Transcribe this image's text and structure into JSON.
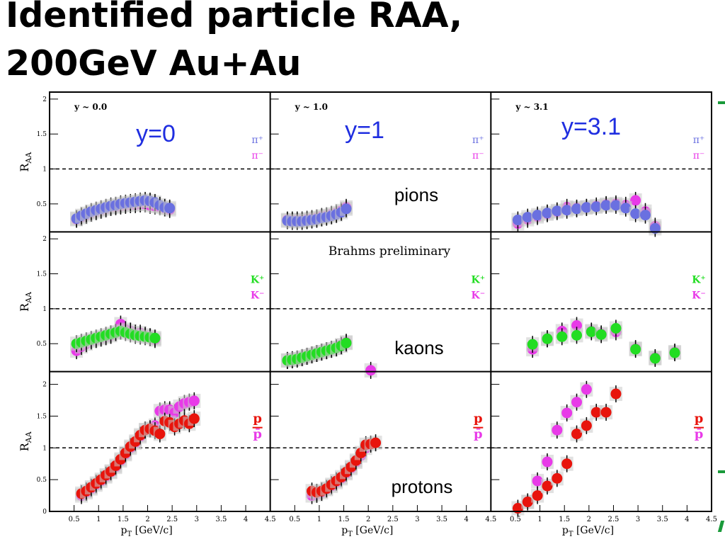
{
  "title_lines": [
    "Identified particle RAA,",
    "200GeV Au+Au"
  ],
  "chart_data": {
    "type": "scatter",
    "layout": "grid",
    "x_label": "p",
    "x_label_sub": "T",
    "x_label_unit": "[GeV/c]",
    "y_label": "R",
    "y_label_sub": "AA",
    "xlim": [
      0,
      4.5
    ],
    "x_ticks": [
      0.5,
      1,
      1.5,
      2,
      2.5,
      3,
      3.5,
      4,
      4.5
    ],
    "x_tick_labels": [
      "0.5",
      "1",
      "1.5",
      "2",
      "2.5",
      "3",
      "3.5",
      "4",
      "4.5"
    ],
    "row_y_ranges": [
      [
        0.1,
        2.1
      ],
      [
        0.1,
        2.1
      ],
      [
        0,
        2.2
      ]
    ],
    "row_y_ticks": [
      [
        0.5,
        1,
        1.5,
        2
      ],
      [
        0.5,
        1,
        1.5,
        2
      ],
      [
        0,
        0.5,
        1,
        1.5,
        2
      ]
    ],
    "row_y_tick_labels": [
      [
        "0.5",
        "1",
        "1.5",
        "2"
      ],
      [
        "0.5",
        "1",
        "1.5",
        "2"
      ],
      [
        "0",
        "0.5",
        "1",
        "1.5",
        "2"
      ]
    ],
    "reference_line": 1,
    "column_labels": [
      "y ~ 0.0",
      "y ~ 1.0",
      "y ~ 3.1"
    ],
    "column_big_labels": [
      "y=0",
      "y=1",
      "y=3.1"
    ],
    "row_labels": [
      "pions",
      "kaons",
      "protons"
    ],
    "annotation": "Brahms preliminary",
    "colors": {
      "pi_plus": "#6a70e0",
      "pi_minus": "#e83ae8",
      "k_plus": "#22dd22",
      "k_minus": "#e83ae8",
      "p": "#e8140c",
      "pbar": "#e83ae8",
      "syst": "#c8c8c8",
      "big_label": "#1f2ee0"
    },
    "legends": [
      [
        {
          "text": "π⁺",
          "color": "#6a70e0"
        },
        {
          "text": "π⁻",
          "color": "#e83ae8"
        }
      ],
      [
        {
          "text": "K⁺",
          "color": "#22dd22"
        },
        {
          "text": "K⁻",
          "color": "#e83ae8"
        }
      ],
      [
        {
          "text": "p",
          "color": "#e8140c"
        },
        {
          "text": "p̄",
          "color": "#e83ae8"
        }
      ]
    ],
    "panels": [
      {
        "row": 0,
        "col": 0,
        "series": [
          {
            "name": "π⁻",
            "color": "#e83ae8",
            "x": [
              0.55,
              0.65,
              0.75,
              0.85,
              0.95,
              1.05,
              1.15,
              1.25,
              1.35,
              1.45,
              1.55,
              1.65,
              1.75,
              1.85,
              1.95,
              2.05,
              2.15,
              2.25,
              2.35,
              2.45
            ],
            "y": [
              0.28,
              0.31,
              0.34,
              0.37,
              0.39,
              0.41,
              0.43,
              0.45,
              0.46,
              0.47,
              0.48,
              0.49,
              0.49,
              0.5,
              0.5,
              0.48,
              0.47,
              0.46,
              0.44,
              0.42
            ]
          },
          {
            "name": "π⁺",
            "color": "#6a70e0",
            "x": [
              0.55,
              0.65,
              0.75,
              0.85,
              0.95,
              1.05,
              1.15,
              1.25,
              1.35,
              1.45,
              1.55,
              1.65,
              1.75,
              1.85,
              1.95,
              2.05,
              2.15,
              2.25,
              2.35,
              2.45
            ],
            "y": [
              0.29,
              0.33,
              0.36,
              0.39,
              0.41,
              0.43,
              0.45,
              0.47,
              0.48,
              0.5,
              0.51,
              0.52,
              0.53,
              0.54,
              0.55,
              0.54,
              0.52,
              0.48,
              0.45,
              0.44
            ]
          }
        ]
      },
      {
        "row": 0,
        "col": 1,
        "series": [
          {
            "name": "π⁻",
            "color": "#e83ae8",
            "x": [
              0.35,
              0.45,
              0.55,
              0.65,
              0.75,
              0.85,
              0.95,
              1.05,
              1.15,
              1.25,
              1.35,
              1.45,
              1.55
            ],
            "y": [
              0.27,
              0.27,
              0.27,
              0.27,
              0.28,
              0.29,
              0.3,
              0.32,
              0.33,
              0.35,
              0.37,
              0.4,
              0.45
            ]
          },
          {
            "name": "π⁺",
            "color": "#6a70e0",
            "x": [
              0.35,
              0.45,
              0.55,
              0.65,
              0.75,
              0.85,
              0.95,
              1.05,
              1.15,
              1.25,
              1.35,
              1.45,
              1.55
            ],
            "y": [
              0.26,
              0.25,
              0.25,
              0.25,
              0.26,
              0.27,
              0.28,
              0.3,
              0.31,
              0.33,
              0.35,
              0.38,
              0.43
            ]
          }
        ]
      },
      {
        "row": 0,
        "col": 2,
        "series": [
          {
            "name": "π⁻",
            "color": "#e83ae8",
            "x": [
              0.55,
              0.75,
              0.95,
              1.15,
              1.35,
              1.55,
              1.75,
              1.95,
              2.15,
              2.35,
              2.55,
              2.75,
              2.95,
              3.15,
              3.35
            ],
            "y": [
              0.22,
              0.28,
              0.32,
              0.36,
              0.39,
              0.45,
              0.44,
              0.45,
              0.47,
              0.49,
              0.5,
              0.48,
              0.55,
              0.39,
              0.18
            ]
          },
          {
            "name": "π⁺",
            "color": "#6a70e0",
            "x": [
              0.55,
              0.75,
              0.95,
              1.15,
              1.35,
              1.55,
              1.75,
              1.95,
              2.15,
              2.35,
              2.55,
              2.75,
              2.95,
              3.15,
              3.35
            ],
            "y": [
              0.27,
              0.31,
              0.34,
              0.37,
              0.4,
              0.41,
              0.43,
              0.45,
              0.46,
              0.48,
              0.48,
              0.44,
              0.36,
              0.34,
              0.15
            ]
          }
        ]
      },
      {
        "row": 1,
        "col": 0,
        "series": [
          {
            "name": "K⁻",
            "color": "#e83ae8",
            "x": [
              0.55,
              0.65,
              0.75,
              0.85,
              0.95,
              1.05,
              1.15,
              1.25,
              1.35,
              1.45,
              1.55,
              1.65,
              1.75,
              1.85,
              1.95,
              2.05,
              2.15
            ],
            "y": [
              0.4,
              0.46,
              0.5,
              0.54,
              0.56,
              0.58,
              0.6,
              0.62,
              0.66,
              0.78,
              0.7,
              0.68,
              0.65,
              0.65,
              0.62,
              0.6,
              0.56
            ]
          },
          {
            "name": "K⁺",
            "color": "#22dd22",
            "x": [
              0.55,
              0.65,
              0.75,
              0.85,
              0.95,
              1.05,
              1.15,
              1.25,
              1.35,
              1.45,
              1.55,
              1.65,
              1.75,
              1.85,
              1.95,
              2.05,
              2.15
            ],
            "y": [
              0.5,
              0.52,
              0.54,
              0.56,
              0.58,
              0.6,
              0.62,
              0.64,
              0.66,
              0.68,
              0.66,
              0.64,
              0.62,
              0.61,
              0.6,
              0.59,
              0.58
            ]
          }
        ]
      },
      {
        "row": 1,
        "col": 1,
        "series": [
          {
            "name": "K⁻",
            "color": "#e83ae8",
            "x": [
              0.35,
              0.45,
              0.55,
              0.65,
              0.75,
              0.85,
              0.95,
              1.05,
              1.15,
              1.25,
              1.35,
              1.45,
              1.55
            ],
            "y": [
              0.26,
              0.27,
              0.28,
              0.3,
              0.32,
              0.34,
              0.36,
              0.38,
              0.4,
              0.42,
              0.44,
              0.48,
              0.52
            ]
          },
          {
            "name": "K⁺",
            "color": "#22dd22",
            "x": [
              0.35,
              0.45,
              0.55,
              0.65,
              0.75,
              0.85,
              0.95,
              1.05,
              1.15,
              1.25,
              1.35,
              1.45,
              1.55
            ],
            "y": [
              0.26,
              0.27,
              0.28,
              0.3,
              0.32,
              0.34,
              0.36,
              0.38,
              0.4,
              0.42,
              0.44,
              0.47,
              0.51
            ]
          }
        ]
      },
      {
        "row": 1,
        "col": 2,
        "series": [
          {
            "name": "K⁻",
            "color": "#e83ae8",
            "x": [
              0.85,
              1.15,
              1.45,
              1.75,
              2.05,
              2.25,
              2.55,
              2.95,
              3.35,
              3.75
            ],
            "y": [
              0.42,
              0.57,
              0.68,
              0.76,
              0.68,
              0.64,
              0.67,
              0.43,
              0.3,
              0.38
            ]
          },
          {
            "name": "K⁺",
            "color": "#22dd22",
            "x": [
              0.85,
              1.15,
              1.45,
              1.75,
              2.05,
              2.25,
              2.55,
              2.95,
              3.35,
              3.75
            ],
            "y": [
              0.49,
              0.57,
              0.6,
              0.62,
              0.67,
              0.63,
              0.72,
              0.42,
              0.29,
              0.37
            ]
          }
        ]
      },
      {
        "row": 2,
        "col": 0,
        "series": [
          {
            "name": "p̄",
            "color": "#e83ae8",
            "x": [
              0.65,
              0.75,
              0.85,
              0.95,
              1.05,
              1.15,
              1.25,
              1.35,
              1.45,
              1.55,
              1.65,
              1.75,
              1.85,
              1.95,
              2.05,
              2.15,
              2.25,
              2.35,
              2.45,
              2.55,
              2.65,
              2.75,
              2.85,
              2.95
            ],
            "y": [
              0.25,
              0.3,
              0.36,
              0.42,
              0.48,
              0.55,
              0.62,
              0.7,
              0.8,
              0.9,
              1.0,
              1.08,
              1.18,
              1.28,
              1.3,
              1.35,
              1.58,
              1.6,
              1.6,
              1.55,
              1.65,
              1.7,
              1.72,
              1.74
            ]
          },
          {
            "name": "p",
            "color": "#e8140c",
            "x": [
              0.65,
              0.75,
              0.85,
              0.95,
              1.05,
              1.15,
              1.25,
              1.35,
              1.45,
              1.55,
              1.65,
              1.75,
              1.85,
              1.95,
              2.05,
              2.15,
              2.25,
              2.35,
              2.45,
              2.55,
              2.65,
              2.75,
              2.85,
              2.95
            ],
            "y": [
              0.28,
              0.32,
              0.38,
              0.44,
              0.5,
              0.57,
              0.63,
              0.72,
              0.82,
              0.92,
              1.02,
              1.1,
              1.2,
              1.28,
              1.3,
              1.27,
              1.22,
              1.42,
              1.4,
              1.33,
              1.38,
              1.43,
              1.38,
              1.46
            ]
          }
        ]
      },
      {
        "row": 2,
        "col": 1,
        "series": [
          {
            "name": "p̄",
            "color": "#e83ae8",
            "x": [
              0.85,
              0.95,
              1.05,
              1.15,
              1.25,
              1.35,
              1.45,
              1.55,
              1.65,
              1.75,
              1.85,
              1.95,
              2.05
            ],
            "y": [
              0.25,
              0.27,
              0.3,
              0.35,
              0.4,
              0.46,
              0.52,
              0.6,
              0.68,
              0.78,
              0.88,
              1.0,
              2.22
            ]
          },
          {
            "name": "p",
            "color": "#e8140c",
            "x": [
              0.85,
              0.95,
              1.05,
              1.15,
              1.25,
              1.35,
              1.45,
              1.55,
              1.65,
              1.75,
              1.85,
              1.95,
              2.05,
              2.15
            ],
            "y": [
              0.32,
              0.3,
              0.32,
              0.36,
              0.42,
              0.48,
              0.54,
              0.62,
              0.7,
              0.8,
              0.92,
              1.05,
              1.06,
              1.08
            ]
          }
        ]
      },
      {
        "row": 2,
        "col": 2,
        "series": [
          {
            "name": "p̄",
            "color": "#e83ae8",
            "x": [
              0.75,
              0.95,
              1.15,
              1.35,
              1.55,
              1.75,
              1.95
            ],
            "y": [
              0.15,
              0.48,
              0.78,
              1.28,
              1.55,
              1.72,
              1.92
            ]
          },
          {
            "name": "p",
            "color": "#e8140c",
            "x": [
              0.55,
              0.75,
              0.95,
              1.15,
              1.35,
              1.55,
              1.75,
              1.95,
              2.15,
              2.35,
              2.55
            ],
            "y": [
              0.05,
              0.15,
              0.25,
              0.4,
              0.52,
              0.75,
              1.22,
              1.35,
              1.56,
              1.56,
              1.85
            ]
          }
        ]
      }
    ]
  }
}
